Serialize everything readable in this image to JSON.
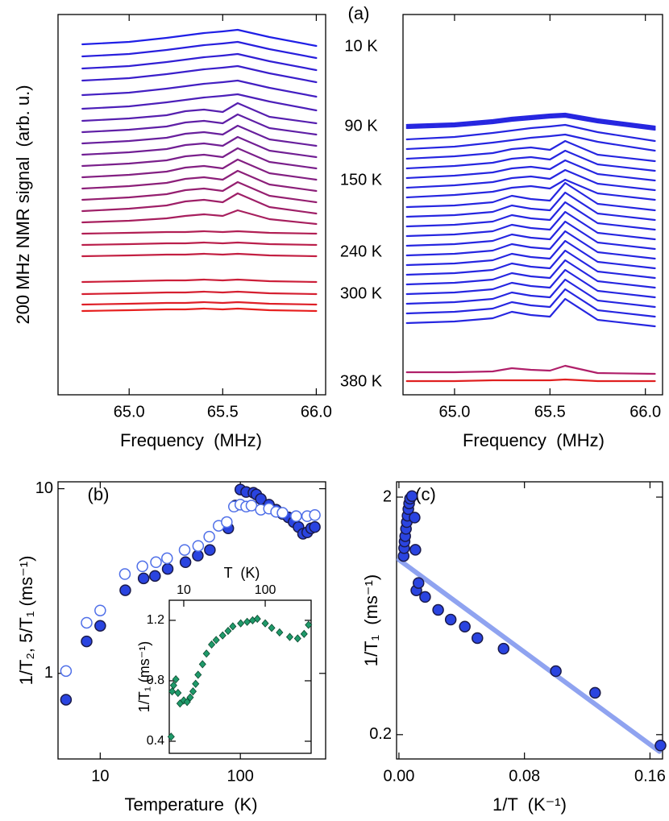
{
  "chart_data": [
    {
      "type": "line",
      "panel_label": "(a)",
      "xlabel": "Frequency  (MHz)",
      "ylabel": "200 MHz NMR signal  (arb. u.)",
      "annotations": [
        "10 K",
        "90 K",
        "150 K",
        "240 K",
        "300 K",
        "380 K"
      ],
      "xlim": [
        64.62,
        66.05
      ],
      "xticks": [
        {
          "value": 65.0,
          "label": "65.0"
        },
        65.5,
        {
          "value": 66.0,
          "label": "66.0"
        }
      ],
      "ylim": [
        0,
        472
      ],
      "x": [
        64.75,
        65.0,
        65.2,
        65.3,
        65.4,
        65.5,
        65.58,
        65.75,
        66.0
      ],
      "series": [
        {
          "color": "#1f1fe6",
          "values": [
            435,
            438,
            443,
            446,
            449,
            451,
            453,
            444,
            433
          ]
        },
        {
          "color": "#281fdd",
          "values": [
            420,
            423,
            428,
            431,
            434,
            436,
            438,
            429,
            418
          ]
        },
        {
          "color": "#311fd4",
          "values": [
            405,
            408,
            413,
            416,
            419,
            421,
            423,
            414,
            403
          ]
        },
        {
          "color": "#3a1fcb",
          "values": [
            390,
            393,
            398,
            401,
            404,
            406,
            408,
            399,
            388
          ]
        },
        {
          "color": "#431fc2",
          "values": [
            372,
            375,
            380,
            383,
            386,
            388,
            390,
            381,
            370
          ]
        },
        {
          "color": "#4c1fb9",
          "values": [
            355,
            358,
            363,
            366,
            369,
            371,
            373,
            364,
            353
          ]
        },
        {
          "color": "#561faf",
          "values": [
            340,
            343,
            347,
            352,
            354,
            351,
            362,
            345,
            337
          ]
        },
        {
          "color": "#5f1fa6",
          "values": [
            326,
            329,
            333,
            338,
            340,
            337,
            348,
            331,
            323
          ]
        },
        {
          "color": "#681f9d",
          "values": [
            312,
            315,
            319,
            324,
            326,
            323,
            334,
            317,
            309
          ]
        },
        {
          "color": "#711f94",
          "values": [
            298,
            301,
            305,
            310,
            312,
            309,
            320,
            303,
            295
          ]
        },
        {
          "color": "#7a1f8b",
          "values": [
            284,
            287,
            291,
            296,
            298,
            295,
            306,
            289,
            281
          ]
        },
        {
          "color": "#831f82",
          "values": [
            270,
            273,
            277,
            282,
            284,
            281,
            292,
            275,
            267
          ]
        },
        {
          "color": "#8c1f79",
          "values": [
            256,
            259,
            263,
            268,
            270,
            267,
            278,
            261,
            253
          ]
        },
        {
          "color": "#951f70",
          "values": [
            242,
            245,
            249,
            254,
            256,
            253,
            264,
            247,
            239
          ]
        },
        {
          "color": "#9e1f67",
          "values": [
            228,
            231,
            235,
            240,
            242,
            239,
            250,
            233,
            225
          ]
        },
        {
          "color": "#a71f5e",
          "values": [
            214,
            216,
            219,
            222,
            224,
            222,
            229,
            218,
            212
          ]
        },
        {
          "color": "#b11f54",
          "values": [
            200,
            201,
            202,
            202,
            203,
            202,
            203,
            201,
            200
          ]
        },
        {
          "color": "#ba1f4b",
          "values": [
            186,
            187,
            188,
            188,
            189,
            188,
            189,
            187,
            186
          ]
        },
        {
          "color": "#c31f42",
          "values": [
            172,
            173,
            174,
            174,
            175,
            174,
            175,
            173,
            172
          ]
        },
        {
          "color": "#cc1f39",
          "values": [
            140,
            141,
            142,
            142,
            143,
            142,
            143,
            141,
            140
          ]
        },
        {
          "color": "#d51f30",
          "values": [
            125,
            126,
            127,
            127,
            128,
            127,
            128,
            126,
            125
          ]
        },
        {
          "color": "#de1f27",
          "values": [
            112,
            113,
            114,
            114,
            115,
            114,
            115,
            113,
            112
          ]
        },
        {
          "color": "#e71f1e",
          "values": [
            104,
            105,
            106,
            106,
            107,
            106,
            107,
            105,
            104
          ]
        }
      ]
    },
    {
      "type": "line",
      "xlabel": "Frequency  (MHz)",
      "xlim": [
        64.73,
        66.09
      ],
      "xticks": [
        {
          "value": 65.0,
          "label": "65.0"
        },
        65.5,
        {
          "value": 66.0,
          "label": "66.0"
        }
      ],
      "ylim": [
        0,
        472
      ],
      "x": [
        64.75,
        65.0,
        65.2,
        65.3,
        65.4,
        65.5,
        65.58,
        65.75,
        66.05
      ],
      "series": [
        {
          "color": "#2626e0",
          "values": [
            335,
            337,
            341,
            344,
            346,
            348,
            349,
            342,
            333
          ]
        },
        {
          "color": "#2626e0",
          "values": [
            333,
            335,
            339,
            342,
            344,
            346,
            347,
            340,
            331
          ]
        },
        {
          "color": "#2626e0",
          "values": [
            331,
            333,
            337,
            340,
            342,
            344,
            345,
            338,
            329
          ]
        },
        {
          "color": "#2626e0",
          "values": [
            317,
            320,
            325,
            328,
            331,
            333,
            335,
            326,
            315
          ]
        },
        {
          "color": "#2626e0",
          "values": [
            305,
            308,
            313,
            316,
            319,
            321,
            323,
            314,
            303
          ]
        },
        {
          "color": "#2626e0",
          "values": [
            293,
            296,
            300,
            305,
            307,
            304,
            315,
            298,
            290
          ]
        },
        {
          "color": "#2626e0",
          "values": [
            281,
            284,
            288,
            293,
            295,
            292,
            303,
            286,
            278
          ]
        },
        {
          "color": "#2626e0",
          "values": [
            269,
            272,
            276,
            281,
            283,
            280,
            291,
            274,
            266
          ]
        },
        {
          "color": "#2626e0",
          "values": [
            257,
            260,
            264,
            269,
            271,
            268,
            279,
            262,
            254
          ]
        },
        {
          "color": "#2626e0",
          "values": [
            245,
            248,
            252,
            257,
            259,
            256,
            267,
            250,
            242
          ]
        },
        {
          "color": "#2626e0",
          "values": [
            233,
            235,
            239,
            247,
            243,
            241,
            263,
            237,
            229
          ]
        },
        {
          "color": "#2626e0",
          "values": [
            221,
            223,
            227,
            235,
            231,
            229,
            251,
            225,
            217
          ]
        },
        {
          "color": "#2626e0",
          "values": [
            209,
            211,
            215,
            223,
            219,
            217,
            239,
            213,
            205
          ]
        },
        {
          "color": "#2626e0",
          "values": [
            197,
            199,
            203,
            211,
            207,
            205,
            227,
            201,
            193
          ]
        },
        {
          "color": "#2626e0",
          "values": [
            185,
            187,
            191,
            199,
            195,
            193,
            215,
            189,
            181
          ]
        },
        {
          "color": "#2626e0",
          "values": [
            173,
            175,
            179,
            187,
            183,
            181,
            203,
            177,
            169
          ]
        },
        {
          "color": "#2626e0",
          "values": [
            161,
            163,
            167,
            175,
            171,
            169,
            191,
            165,
            157
          ]
        },
        {
          "color": "#2626e0",
          "values": [
            149,
            151,
            155,
            163,
            159,
            157,
            179,
            153,
            145
          ]
        },
        {
          "color": "#2626e0",
          "values": [
            137,
            139,
            143,
            151,
            147,
            145,
            167,
            141,
            133
          ]
        },
        {
          "color": "#2626e0",
          "values": [
            125,
            127,
            131,
            139,
            135,
            133,
            155,
            129,
            121
          ]
        },
        {
          "color": "#2626e0",
          "values": [
            113,
            115,
            119,
            127,
            123,
            121,
            143,
            117,
            109
          ]
        },
        {
          "color": "#2626e0",
          "values": [
            101,
            103,
            107,
            115,
            111,
            109,
            131,
            105,
            97
          ]
        },
        {
          "color": "#2626e0",
          "values": [
            89,
            91,
            95,
            103,
            99,
            97,
            119,
            93,
            85
          ]
        },
        {
          "color": "#b0206a",
          "values": [
            28,
            28,
            29,
            33,
            31,
            30,
            36,
            27,
            26
          ]
        },
        {
          "color": "#e02020",
          "values": [
            17,
            17,
            18,
            18,
            18,
            18,
            19,
            17,
            17
          ]
        }
      ]
    },
    {
      "type": "scatter",
      "panel_label": "(b)",
      "xlabel": "Temperature  (K)",
      "ylabel": "1/T₂, 5/T₁ (ms⁻¹)",
      "xlog": true,
      "ylog": true,
      "xlim": [
        5,
        406
      ],
      "xticks": [
        10,
        100
      ],
      "ylim": [
        0.344,
        10.9
      ],
      "yticks": [
        1,
        10
      ],
      "series": [
        {
          "color": "#2a44e0",
          "marker": "circle",
          "filled": true,
          "x": [
            5.7,
            8,
            10,
            15.1,
            20.4,
            24.6,
            30.3,
            40.6,
            49.7,
            60.6,
            82,
            92,
            100,
            110,
            124,
            130,
            140,
            160,
            180,
            200,
            220,
            240,
            260,
            280,
            300,
            320,
            340
          ],
          "values": [
            0.72,
            1.49,
            1.81,
            2.82,
            3.27,
            3.37,
            3.68,
            4.0,
            4.34,
            4.66,
            6.1,
            8.1,
            9.9,
            9.6,
            9.5,
            9.3,
            8.8,
            8.2,
            7.7,
            7.3,
            7.0,
            6.6,
            6.2,
            5.7,
            5.8,
            6.1,
            6.2
          ]
        },
        {
          "color": "#4f6fe8",
          "marker": "circle",
          "filled": false,
          "x": [
            5.7,
            8,
            10,
            15,
            20,
            25,
            30,
            40,
            50,
            60,
            70,
            80,
            90,
            100,
            110,
            120,
            140,
            160,
            180,
            200,
            250,
            300,
            340
          ],
          "values": [
            1.03,
            1.88,
            2.19,
            3.45,
            3.8,
            4.0,
            4.2,
            4.66,
            4.9,
            5.5,
            6.3,
            6.6,
            8.0,
            8.2,
            8.0,
            8.1,
            7.7,
            7.8,
            7.5,
            7.4,
            7.1,
            7.1,
            7.2
          ]
        }
      ]
    },
    {
      "type": "scatter",
      "panel_label": "(c)",
      "xlabel": "1/T  (K⁻¹)",
      "ylabel": "1/T₁  (ms⁻¹)",
      "ylog": true,
      "xlim": [
        -0.0015,
        0.168
      ],
      "xticks": [
        {
          "value": 0,
          "label": "0.00"
        },
        0.08,
        0.16
      ],
      "ylim": [
        0.158,
        2.32
      ],
      "yticks": [
        0.2,
        2
      ],
      "series": [
        {
          "color": "#8fa3f0",
          "style": "line",
          "x": [
            0,
            0.166
          ],
          "values": [
            1.09,
            0.17
          ]
        },
        {
          "color": "#2a44e0",
          "marker": "circle",
          "filled": true,
          "x": [
            0.003,
            0.0033,
            0.0036,
            0.004,
            0.0045,
            0.005,
            0.0055,
            0.006,
            0.0065,
            0.0071,
            0.0083,
            0.01,
            0.0105,
            0.0111,
            0.0125,
            0.0167,
            0.025,
            0.033,
            0.042,
            0.05,
            0.0667,
            0.1,
            0.125,
            0.1667
          ],
          "values": [
            1.13,
            1.22,
            1.3,
            1.37,
            1.47,
            1.57,
            1.67,
            1.78,
            1.88,
            1.97,
            2.02,
            1.64,
            1.2,
            0.81,
            0.87,
            0.76,
            0.67,
            0.61,
            0.57,
            0.51,
            0.46,
            0.37,
            0.3,
            0.18
          ]
        }
      ]
    },
    {
      "type": "scatter",
      "xlabel": "T  (K)",
      "ylabel": "1/T₁ (ms⁻¹)",
      "xlog": true,
      "xlim": [
        6.64,
        366
      ],
      "xticks": [
        10,
        100
      ],
      "ylim": [
        0.32,
        1.333
      ],
      "yticks": [
        0.4,
        0.8,
        1.2
      ],
      "series": [
        {
          "color": "#1f9a6a",
          "marker": "diamond",
          "filled": true,
          "x": [
            7,
            7.2,
            7.5,
            8,
            8.5,
            9,
            10,
            11,
            12,
            13,
            14,
            15,
            17,
            19,
            22,
            25,
            30,
            35,
            40,
            50,
            60,
            70,
            80,
            100,
            120,
            150,
            200,
            250,
            300,
            340
          ],
          "values": [
            0.43,
            0.73,
            0.77,
            0.81,
            0.72,
            0.65,
            0.67,
            0.66,
            0.69,
            0.73,
            0.78,
            0.84,
            0.91,
            0.98,
            1.04,
            1.07,
            1.1,
            1.13,
            1.16,
            1.18,
            1.19,
            1.2,
            1.21,
            1.18,
            1.15,
            1.12,
            1.09,
            1.08,
            1.11,
            1.17
          ]
        }
      ]
    }
  ]
}
